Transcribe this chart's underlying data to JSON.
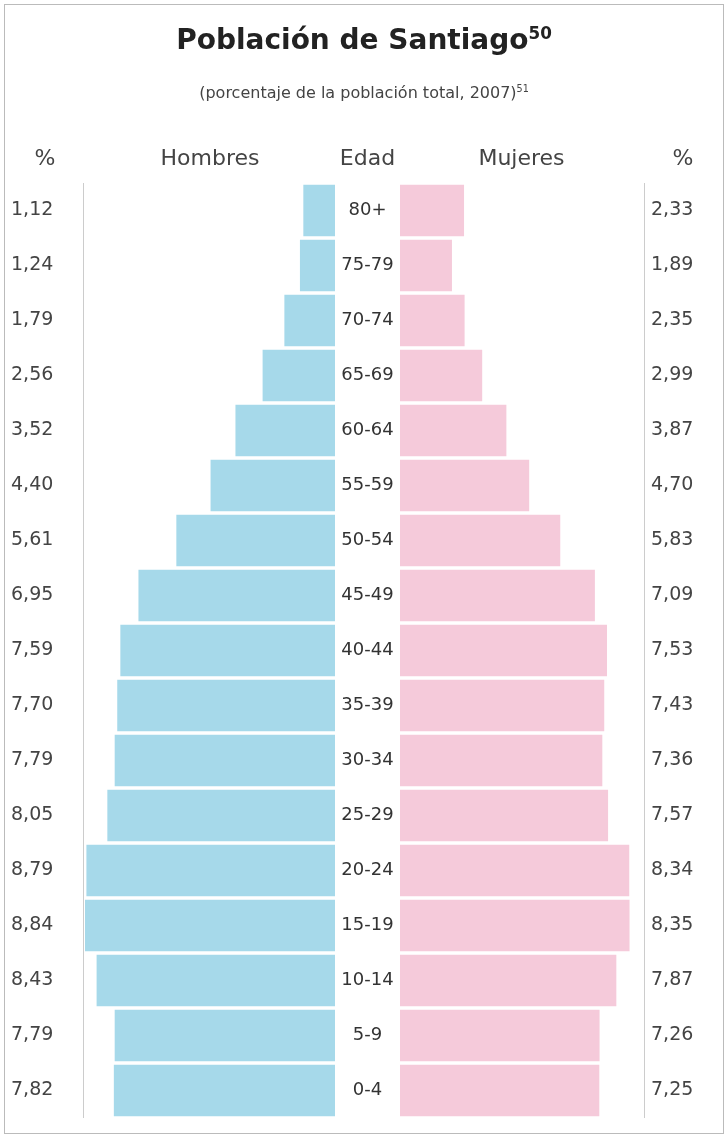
{
  "chart_data": [
    {
      "type": "bar",
      "orientation": "horizontal",
      "title": "Población de Santiago$^{50}$",
      "subtitle": "(porcentaje de la población total, 2007)$^{51}$",
      "xlabel": "%",
      "ylabel": "Edad",
      "tick_labels": "y",
      "categories": [
        "80+",
        "75-79",
        "70-74",
        "65-69",
        "60-64",
        "55-59",
        "50-54",
        "45-49",
        "40-44",
        "35-39",
        "30-34",
        "25-29",
        "20-24",
        "15-19",
        "10-14",
        "5-9",
        "0-4"
      ],
      "series": [
        {
          "name": "Hombres",
          "color": "#a6d9ea",
          "values": [
            1.12,
            1.24,
            1.79,
            2.56,
            3.52,
            4.4,
            5.61,
            6.95,
            7.59,
            7.7,
            7.79,
            8.05,
            8.79,
            8.84,
            8.43,
            7.79,
            7.82
          ],
          "value_labels": [
            "1,12",
            "1,24",
            "1,79",
            "2,56",
            "3,52",
            "4,40",
            "5,61",
            "6,95",
            "7,59",
            "7,70",
            "7,79",
            "8,05",
            "8,79",
            "8,84",
            "8,43",
            "7,79",
            "7,82"
          ]
        }
      ]
    },
    {
      "type": "bar",
      "orientation": "horizontal",
      "xlabel": "%",
      "tick_labels": false,
      "categories": [
        null,
        null,
        null,
        null,
        null,
        null,
        null,
        null,
        null,
        null,
        null,
        null,
        null,
        null,
        null,
        null,
        null
      ],
      "series": [
        {
          "name": "Mujeres",
          "color": "#f5cada",
          "values": [
            2.33,
            1.89,
            2.35,
            2.99,
            3.87,
            4.7,
            5.83,
            7.09,
            7.53,
            7.43,
            7.36,
            7.57,
            8.34,
            8.35,
            7.87,
            7.26,
            7.25
          ],
          "value_labels": [
            "2,33",
            "1,89",
            "2,35",
            "2,99",
            "3,87",
            "4,70",
            "5,83",
            "7,09",
            "7,53",
            "7,43",
            "7,36",
            "7,57",
            "8,34",
            "8,35",
            "7,87",
            "7,26",
            "7,25"
          ]
        }
      ]
    }
  ]
}
